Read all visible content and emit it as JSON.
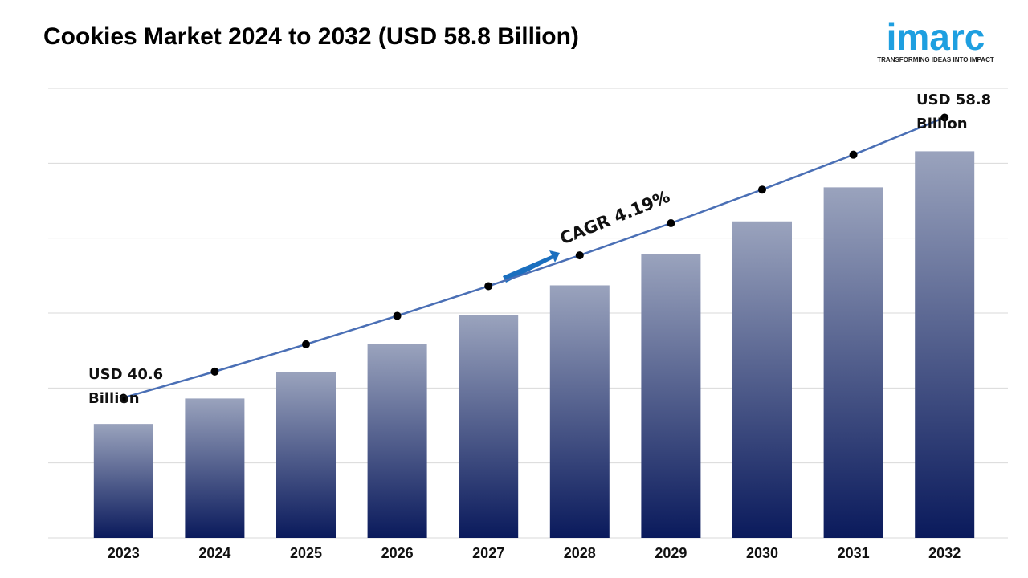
{
  "chart_data": {
    "type": "bar",
    "title": "Cookies Market 2024 to 2032 (USD 58.8 Billion)",
    "categories": [
      "2023",
      "2024",
      "2025",
      "2026",
      "2027",
      "2028",
      "2029",
      "2030",
      "2031",
      "2032"
    ],
    "series": [
      {
        "type": "bar",
        "color": "#0a1a5c",
        "values": [
          40.6,
          42.3,
          44.07,
          45.92,
          47.85,
          49.85,
          51.94,
          54.12,
          56.39,
          58.8
        ]
      },
      {
        "type": "line",
        "axis": "y2",
        "color": "#4a6fb5",
        "values": [
          40.6,
          42.3,
          44.07,
          45.92,
          47.85,
          49.85,
          51.94,
          54.12,
          56.39,
          58.8
        ]
      }
    ],
    "ylim": [
      33,
      63
    ],
    "yticks": [
      33,
      38,
      43,
      48,
      53,
      58,
      63
    ],
    "y2lim": [
      31.5,
      60.7
    ],
    "grid": true,
    "annotations": [
      "USD 40.6 Billion",
      "USD 58.8 Billion",
      "CAGR 4.19%"
    ]
  },
  "logo": {
    "name": "imarc",
    "tagline": "TRANSFORMING IDEAS INTO IMPACT"
  }
}
